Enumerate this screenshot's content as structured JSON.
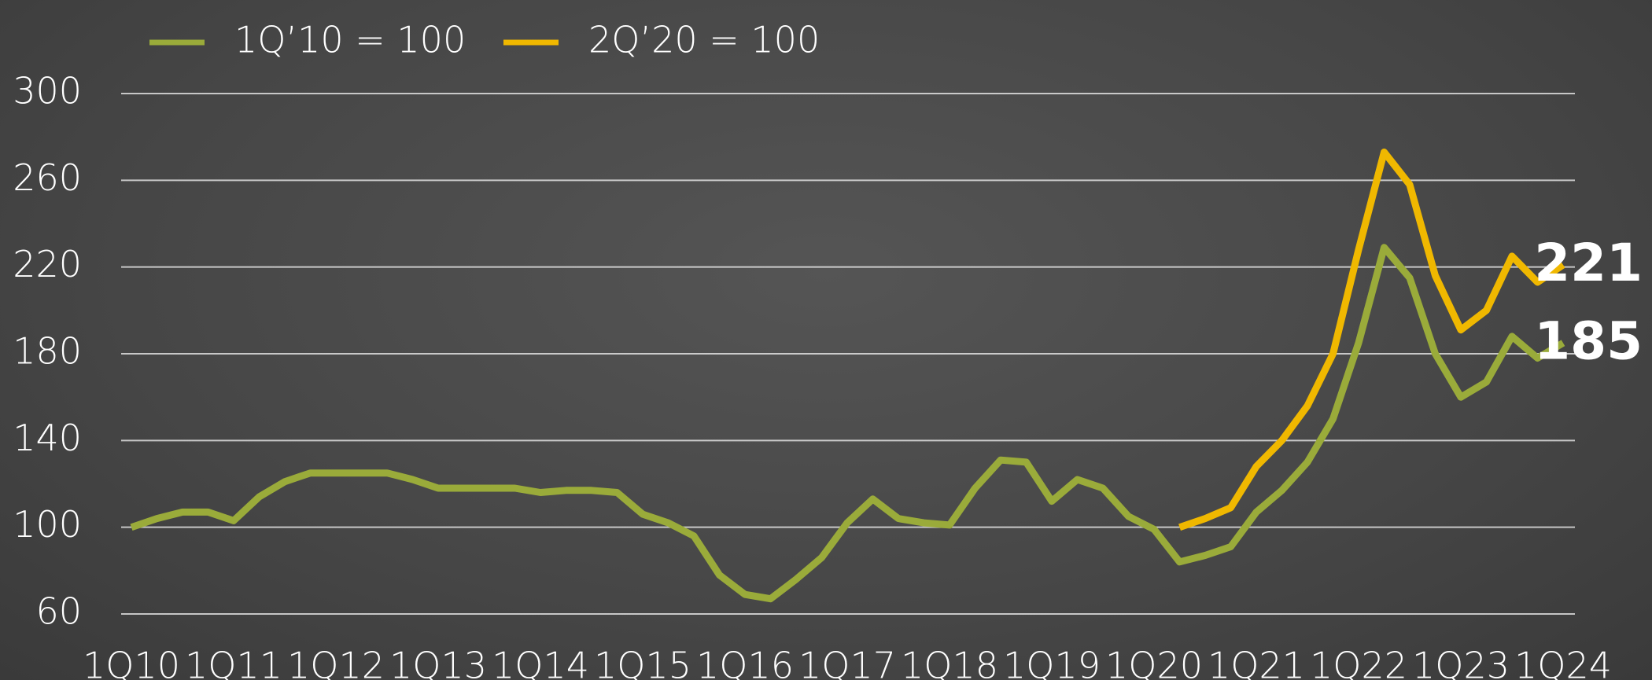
{
  "chart_data": {
    "type": "line",
    "categories": [
      "1Q10",
      null,
      null,
      null,
      "1Q11",
      null,
      null,
      null,
      "1Q12",
      null,
      null,
      null,
      "1Q13",
      null,
      null,
      null,
      "1Q14",
      null,
      null,
      null,
      "1Q15",
      null,
      null,
      null,
      "1Q16",
      null,
      null,
      null,
      "1Q17",
      null,
      null,
      null,
      "1Q18",
      null,
      null,
      null,
      "1Q19",
      null,
      null,
      null,
      "1Q20",
      null,
      null,
      null,
      "1Q21",
      null,
      null,
      null,
      "1Q22",
      null,
      null,
      null,
      "1Q23",
      null,
      null,
      null,
      "1Q24"
    ],
    "series": [
      {
        "name": "1Q’10 = 100",
        "color": "#9aab3a",
        "values": [
          100,
          104,
          107,
          107,
          103,
          114,
          121,
          125,
          125,
          125,
          125,
          122,
          118,
          118,
          118,
          118,
          116,
          117,
          117,
          116,
          106,
          102,
          96,
          78,
          69,
          67,
          76,
          86,
          102,
          113,
          104,
          102,
          101,
          118,
          131,
          130,
          112,
          122,
          118,
          105,
          99,
          84,
          87,
          91,
          107,
          117,
          130,
          150,
          185,
          229,
          215,
          180,
          160,
          167,
          188,
          178,
          185
        ]
      },
      {
        "name": "2Q’20 = 100",
        "color": "#f0b800",
        "values": [
          null,
          null,
          null,
          null,
          null,
          null,
          null,
          null,
          null,
          null,
          null,
          null,
          null,
          null,
          null,
          null,
          null,
          null,
          null,
          null,
          null,
          null,
          null,
          null,
          null,
          null,
          null,
          null,
          null,
          null,
          null,
          null,
          null,
          null,
          null,
          null,
          null,
          null,
          null,
          null,
          null,
          100,
          104,
          109,
          128,
          140,
          156,
          180,
          228,
          273,
          258,
          216,
          191,
          200,
          225,
          213,
          221
        ]
      }
    ],
    "ylim": [
      60,
      300
    ],
    "yticks": [
      60,
      100,
      140,
      180,
      220,
      260,
      300
    ],
    "grid": true
  }
}
